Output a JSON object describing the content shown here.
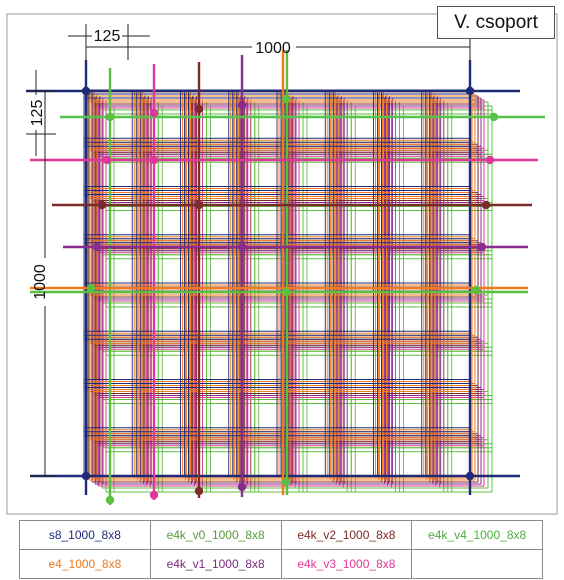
{
  "group_label": "V. csoport",
  "dimensions": {
    "top_spacing": "125",
    "top_total": "1000",
    "left_spacing": "125",
    "left_total": "1000"
  },
  "colors": {
    "s8_1000_8x8": "#1f2a78",
    "e4_1000_8x8": "#f07a1c",
    "e4k_v0_1000_8x8": "#5cbf3f",
    "e4k_v1_1000_8x8": "#8a2c8f",
    "e4k_v2_1000_8x8": "#7b2b2b",
    "e4k_v3_1000_8x8": "#e0389a",
    "e4k_v4_1000_8x8": "#57c24a"
  },
  "legend": {
    "rows": [
      [
        {
          "label": "s8_1000_8x8",
          "color": "#1f2a78"
        },
        {
          "label": "e4k_v0_1000_8x8",
          "color": "#5a9a3a"
        },
        {
          "label": "e4k_v2_1000_8x8",
          "color": "#7b2b2b"
        },
        {
          "label": "e4k_v4_1000_8x8",
          "color": "#4caf3f"
        }
      ],
      [
        {
          "label": "e4_1000_8x8",
          "color": "#f07a1c"
        },
        {
          "label": "e4k_v1_1000_8x8",
          "color": "#7a2a80"
        },
        {
          "label": "e4k_v3_1000_8x8",
          "color": "#e0389a"
        },
        {
          "label": "",
          "color": "#000000"
        }
      ]
    ]
  }
}
